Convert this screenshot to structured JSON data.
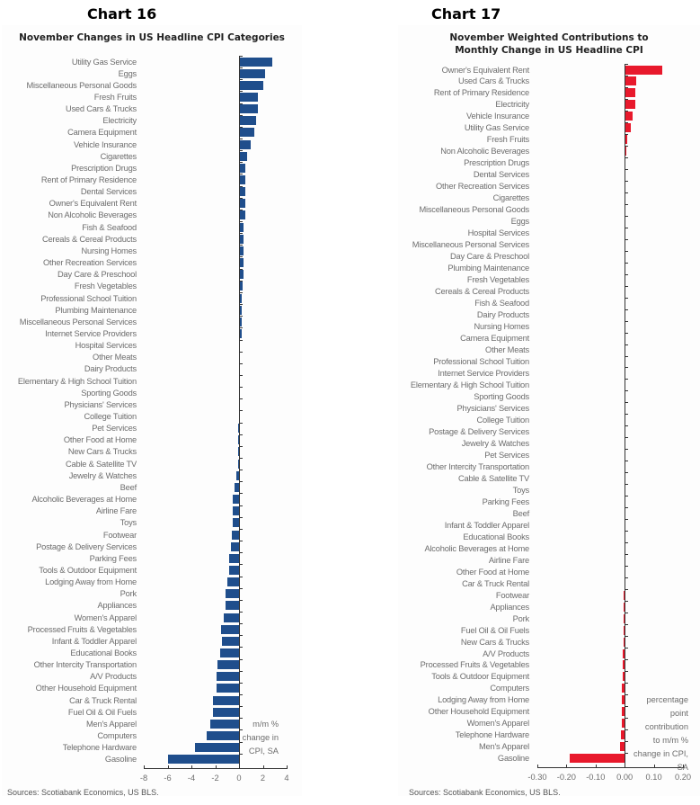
{
  "chart_data": [
    {
      "id": "chart16",
      "number": "Chart 16",
      "type": "bar",
      "orientation": "horizontal",
      "title": "November Changes in US Headline CPI Categories",
      "xlabel": "m/m % change in CPI, SA",
      "unit_lines": [
        "m/m %",
        "change in",
        "CPI, SA"
      ],
      "ylabel": "",
      "xlim": [
        -8,
        4
      ],
      "xticks": [
        -8,
        -6,
        -4,
        -2,
        0,
        2,
        4
      ],
      "xtick_labels": [
        "-8",
        "-6",
        "-4",
        "-2",
        "0",
        "2",
        "4"
      ],
      "bar_color": "#1f4e8c",
      "source": "Sources: Scotiabank Economics, US BLS.",
      "categories": [
        "Utility Gas Service",
        "Eggs",
        "Miscellaneous Personal Goods",
        "Fresh Fruits",
        "Used Cars & Trucks",
        "Electricity",
        "Camera Equipment",
        "Vehicle Insurance",
        "Cigarettes",
        "Prescription Drugs",
        "Rent of Primary Residence",
        "Dental Services",
        "Owner's Equivalent Rent",
        "Non Alcoholic Beverages",
        "Fish & Seafood",
        "Cereals & Cereal Products",
        "Nursing Homes",
        "Other Recreation Services",
        "Day Care & Preschool",
        "Fresh Vegetables",
        "Professional School Tuition",
        "Plumbing Maintenance",
        "Miscellaneous Personal Services",
        "Internet Service Providers",
        "Hospital Services",
        "Other Meats",
        "Dairy Products",
        "Elementary & High School Tuition",
        "Sporting Goods",
        "Physicians' Services",
        "College Tuition",
        "Pet Services",
        "Other Food at Home",
        "New Cars & Trucks",
        "Cable & Satellite TV",
        "Jewelry & Watches",
        "Beef",
        "Alcoholic Beverages at Home",
        "Airline Fare",
        "Toys",
        "Footwear",
        "Postage & Delivery Services",
        "Parking Fees",
        "Tools & Outdoor Equipment",
        "Lodging Away from Home",
        "Pork",
        "Appliances",
        "Women's Apparel",
        "Processed Fruits & Vegetables",
        "Infant & Toddler Apparel",
        "Educational Books",
        "Other Intercity Transportation",
        "A/V Products",
        "Other Household Equipment",
        "Car & Truck Rental",
        "Fuel Oil & Oil Fuels",
        "Men's Apparel",
        "Computers",
        "Telephone Hardware",
        "Gasoline"
      ],
      "values": [
        2.8,
        2.2,
        2.0,
        1.6,
        1.6,
        1.4,
        1.3,
        1.0,
        0.7,
        0.5,
        0.5,
        0.5,
        0.5,
        0.5,
        0.4,
        0.4,
        0.35,
        0.35,
        0.35,
        0.3,
        0.25,
        0.25,
        0.25,
        0.2,
        0.1,
        0.1,
        0.1,
        0.0,
        0.0,
        0.0,
        0.0,
        -0.05,
        -0.05,
        -0.05,
        -0.1,
        -0.2,
        -0.4,
        -0.5,
        -0.5,
        -0.5,
        -0.6,
        -0.7,
        -0.8,
        -0.8,
        -1.0,
        -1.1,
        -1.1,
        -1.3,
        -1.5,
        -1.4,
        -1.6,
        -1.8,
        -1.9,
        -1.9,
        -2.2,
        -2.2,
        -2.4,
        -2.7,
        -3.7,
        -6.0
      ]
    },
    {
      "id": "chart17",
      "number": "Chart 17",
      "type": "bar",
      "orientation": "horizontal",
      "title": "November Weighted Contributions to Monthly Change in US Headline CPI",
      "title_lines": [
        "November Weighted Contributions to",
        "Monthly Change in US Headline CPI"
      ],
      "xlabel": "percentage point contribution to m/m % change in CPI, SA",
      "unit_lines": [
        "percentage",
        "point",
        "contribution",
        "to m/m %",
        "change in CPI,",
        "SA"
      ],
      "ylabel": "",
      "xlim": [
        -0.3,
        0.2
      ],
      "xticks": [
        -0.3,
        -0.2,
        -0.1,
        0.0,
        0.1,
        0.2
      ],
      "xtick_labels": [
        "-0.30",
        "-0.20",
        "-0.10",
        "0.00",
        "0.10",
        "0.20"
      ],
      "bar_color": "#e8192c",
      "source": "Sources: Scotiabank Economics, US BLS.",
      "categories": [
        "Owner's Equivalent Rent",
        "Used Cars & Trucks",
        "Rent of Primary Residence",
        "Electricity",
        "Vehicle Insurance",
        "Utility Gas Service",
        "Fresh Fruits",
        "Non Alcoholic Beverages",
        "Prescription Drugs",
        "Dental Services",
        "Other Recreation Services",
        "Cigarettes",
        "Miscellaneous Personal Goods",
        "Eggs",
        "Hospital Services",
        "Miscellaneous Personal Services",
        "Day Care & Preschool",
        "Plumbing Maintenance",
        "Fresh Vegetables",
        "Cereals & Cereal Products",
        "Fish & Seafood",
        "Dairy Products",
        "Nursing Homes",
        "Camera Equipment",
        "Other Meats",
        "Professional School Tuition",
        "Internet Service Providers",
        "Elementary & High School Tuition",
        "Sporting Goods",
        "Physicians' Services",
        "College Tuition",
        "Postage & Delivery Services",
        "Jewelry & Watches",
        "Pet Services",
        "Other Intercity Transportation",
        "Cable & Satellite TV",
        "Toys",
        "Parking Fees",
        "Beef",
        "Infant & Toddler Apparel",
        "Educational Books",
        "Alcoholic Beverages at Home",
        "Airline Fare",
        "Other Food at Home",
        "Car & Truck Rental",
        "Footwear",
        "Appliances",
        "Pork",
        "Fuel Oil & Oil Fuels",
        "New Cars & Trucks",
        "A/V Products",
        "Processed Fruits & Vegetables",
        "Tools & Outdoor Equipment",
        "Computers",
        "Lodging Away from Home",
        "Other Household Equipment",
        "Women's Apparel",
        "Telephone Hardware",
        "Men's Apparel",
        "Gasoline"
      ],
      "values": [
        0.13,
        0.04,
        0.038,
        0.035,
        0.028,
        0.021,
        0.009,
        0.005,
        0.004,
        0.004,
        0.003,
        0.003,
        0.003,
        0.002,
        0.002,
        0.002,
        0.002,
        0.001,
        0.001,
        0.001,
        0.001,
        0.001,
        0.001,
        0.001,
        0.001,
        0.0005,
        0.0005,
        0.0,
        0.0,
        0.0,
        0.0,
        0.0,
        0.0,
        0.0,
        0.0,
        0.0,
        0.0,
        0.0,
        -0.001,
        -0.001,
        -0.001,
        -0.001,
        -0.002,
        -0.002,
        -0.002,
        -0.003,
        -0.003,
        -0.004,
        -0.004,
        -0.005,
        -0.007,
        -0.008,
        -0.008,
        -0.009,
        -0.01,
        -0.01,
        -0.011,
        -0.012,
        -0.015,
        -0.19
      ]
    }
  ]
}
